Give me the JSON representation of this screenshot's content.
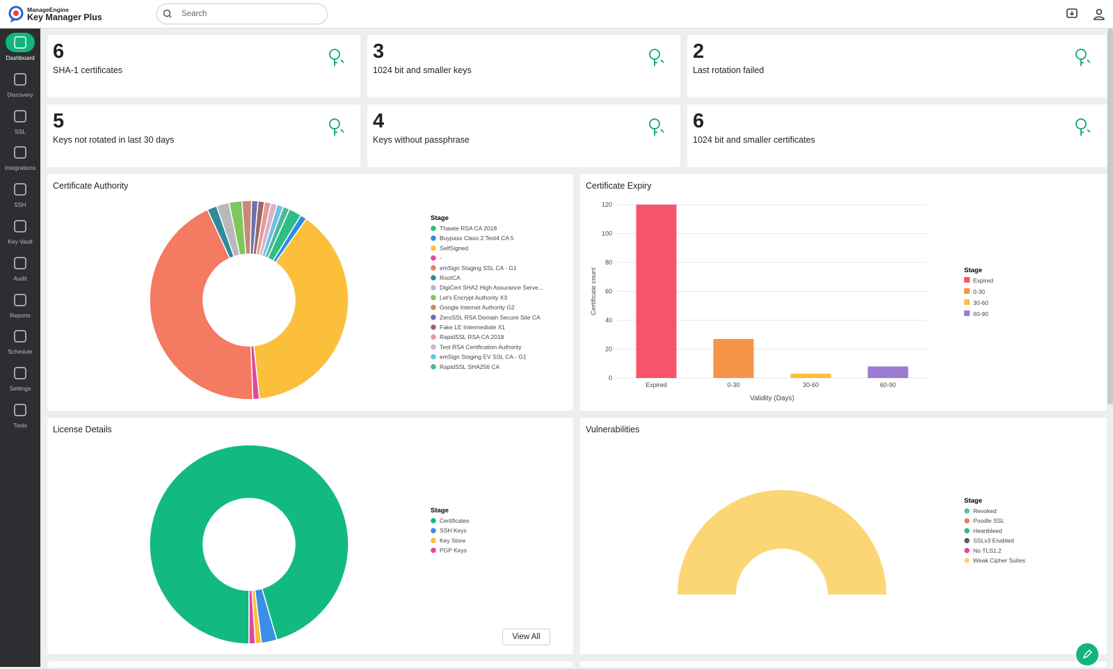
{
  "header": {
    "brand": "ManageEngine",
    "product": "Key Manager Plus",
    "search_placeholder": "Search"
  },
  "sidebar": {
    "items": [
      "Dashboard",
      "Discovery",
      "SSL",
      "Integrations",
      "SSH",
      "Key Vault",
      "Audit",
      "Reports",
      "Schedule",
      "Settings",
      "Tools"
    ]
  },
  "cards": [
    {
      "value": 6,
      "label": "SHA-1 certificates"
    },
    {
      "value": 3,
      "label": "1024 bit and smaller keys"
    },
    {
      "value": 2,
      "label": "Last rotation failed"
    },
    {
      "value": 5,
      "label": "Keys not rotated in last 30 days"
    },
    {
      "value": 4,
      "label": "Keys without passphrase"
    },
    {
      "value": 6,
      "label": "1024 bit and smaller certificates"
    }
  ],
  "actions": {
    "view_all": "View All"
  },
  "chart_data": [
    {
      "type": "donut",
      "title": "Certificate Authority",
      "legend_title": "Stage",
      "categories": [
        "Thawte RSA CA 2018",
        "Buypass Class 2 Test4 CA 5",
        "SelfSigned",
        "-",
        "emSign Staging SSL CA - G1",
        "RootCA",
        "DigiCert SHA2 High Assurance Serve...",
        "Let's Encrypt Authority X3",
        "Google Internet Authority G2",
        "ZeroSSL RSA Domain Secure Site CA",
        "Fake LE Intermediate X1",
        "RapidSSL RSA CA 2018",
        "Test RSA Certification Authority",
        "emSign Staging EV SSL CA - G1",
        "RapidSSL SHA256 CA"
      ],
      "values": [
        2,
        1,
        37,
        1,
        42,
        1.5,
        2,
        2,
        1.5,
        1,
        1,
        1,
        1,
        1,
        1
      ],
      "colors": [
        "#2ebd85",
        "#2d8de0",
        "#fbbf3b",
        "#e0489c",
        "#f47a62",
        "#2f8a9a",
        "#b9b9b9",
        "#7cc85a",
        "#c58a78",
        "#6d6fb3",
        "#9b6a66",
        "#e59a9a",
        "#d9b3c9",
        "#6ec1e4",
        "#4cb79a"
      ]
    },
    {
      "type": "bar",
      "title": "Certificate Expiry",
      "legend_title": "Stage",
      "x_label": "Validity (Days)",
      "y_label": "Certificate count",
      "categories": [
        "Expired",
        "0-30",
        "30-60",
        "60-90"
      ],
      "values": [
        120,
        27,
        3,
        8
      ],
      "colors": [
        "#f75469",
        "#f7944a",
        "#fbbf3b",
        "#9b7bd4"
      ],
      "ylim": [
        0,
        120
      ],
      "yticks": [
        0,
        20,
        40,
        60,
        80,
        100,
        120
      ],
      "grid": true
    },
    {
      "type": "donut",
      "title": "License Details",
      "legend_title": "Stage",
      "categories": [
        "Certificates",
        "SSH Keys",
        "Key Store",
        "PGP Keys"
      ],
      "values": [
        95,
        2.5,
        1,
        1
      ],
      "colors": [
        "#12b981",
        "#3b8ee6",
        "#fbbf3b",
        "#e0489c"
      ]
    },
    {
      "type": "donut",
      "half": true,
      "title": "Vulnerabilities",
      "legend_title": "Stage",
      "categories": [
        "Revoked",
        "Poodle SSL",
        "Heartbleed",
        "SSLv3 Enabled",
        "No TLS1.2",
        "Weak Cipher Suites"
      ],
      "values": [
        0,
        0,
        0,
        0,
        0,
        1
      ],
      "colors": [
        "#4cc3b1",
        "#f47a62",
        "#2ebd85",
        "#555a66",
        "#e0489c",
        "#fcd675"
      ]
    }
  ]
}
